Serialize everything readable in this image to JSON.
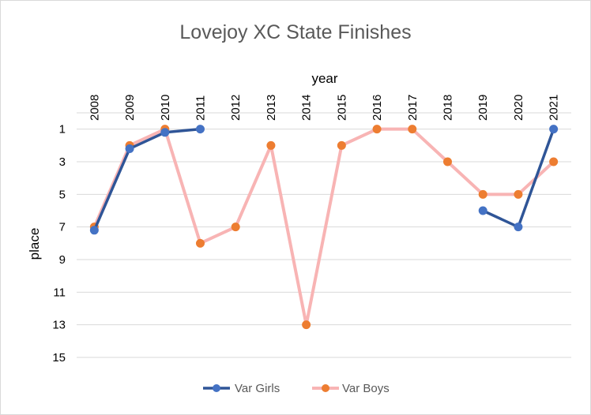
{
  "chart_data": {
    "type": "line",
    "title": "Lovejoy XC State Finishes",
    "xlabel": "year",
    "ylabel": "place",
    "x": [
      "2008",
      "2009",
      "2010",
      "2011",
      "2012",
      "2013",
      "2014",
      "2015",
      "2016",
      "2017",
      "2018",
      "2019",
      "2020",
      "2021"
    ],
    "y_ticks": [
      "1",
      "3",
      "5",
      "7",
      "9",
      "11",
      "13",
      "15"
    ],
    "ylim": [
      0,
      15
    ],
    "y_reversed": true,
    "x_axis_position": "top",
    "grid": true,
    "legend": "bottom",
    "series": [
      {
        "name": "Var Girls",
        "color": "#2f5597",
        "marker_color": "#4472c4",
        "values": [
          7.2,
          2.2,
          1.2,
          1,
          null,
          null,
          null,
          null,
          null,
          null,
          null,
          6,
          7,
          1
        ]
      },
      {
        "name": "Var Boys",
        "color": "#f8b4b4",
        "marker_color": "#ed7d31",
        "values": [
          7,
          2,
          1,
          8,
          7,
          2,
          13,
          2,
          1,
          1,
          3,
          5,
          5,
          3
        ]
      }
    ]
  }
}
